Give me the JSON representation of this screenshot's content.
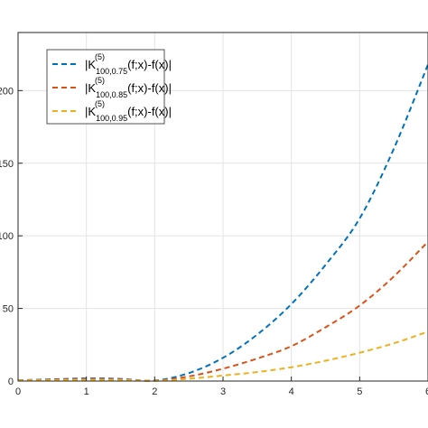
{
  "chart_data": {
    "type": "line",
    "title": "",
    "xlabel": "",
    "ylabel": "",
    "xlim": [
      0,
      6
    ],
    "ylim": [
      0,
      240
    ],
    "x_ticks": [
      0,
      1,
      2,
      3,
      4,
      5,
      6
    ],
    "x_tick_labels": [
      "0",
      "1",
      "2",
      "3",
      "4",
      "5",
      "6"
    ],
    "y_ticks": [
      0,
      50,
      100,
      150,
      200
    ],
    "y_tick_labels": [
      "0",
      "50",
      "100",
      "150",
      "200"
    ],
    "grid": true,
    "legend_placement": "top-left",
    "x": [
      0,
      0.5,
      1,
      1.5,
      2,
      2.5,
      3,
      3.5,
      4,
      4.5,
      5,
      5.5,
      6
    ],
    "series": [
      {
        "name": "|K(5)100,0.75(f;x)-f(x)|",
        "legend": {
          "base": "|K",
          "sup": "(5)",
          "sub": "100,0.75",
          "tail": "(f;x)-f(x)|"
        },
        "color": "#0072BD",
        "values": [
          0.5,
          1.2,
          1.8,
          1.5,
          0.3,
          5.5,
          16,
          32,
          53,
          80,
          112,
          160,
          218
        ]
      },
      {
        "name": "|K(5)100,0.85(f;x)-f(x)|",
        "legend": {
          "base": "|K",
          "sup": "(5)",
          "sub": "100,0.85",
          "tail": "(f;x)-f(x)|"
        },
        "color": "#D95319",
        "values": [
          0.4,
          0.9,
          1.3,
          1.1,
          0.2,
          3.2,
          8.5,
          15.5,
          24,
          37,
          52,
          72,
          96
        ]
      },
      {
        "name": "|K(5)100,0.95(f;x)-f(x)|",
        "legend": {
          "base": "|K",
          "sup": "(5)",
          "sub": "100,0.95",
          "tail": "(f;x)-f(x)|"
        },
        "color": "#EDB120",
        "values": [
          0.3,
          0.6,
          0.8,
          0.7,
          0.1,
          1.6,
          3.8,
          6.2,
          9.5,
          14,
          19.5,
          26,
          34
        ]
      }
    ]
  }
}
